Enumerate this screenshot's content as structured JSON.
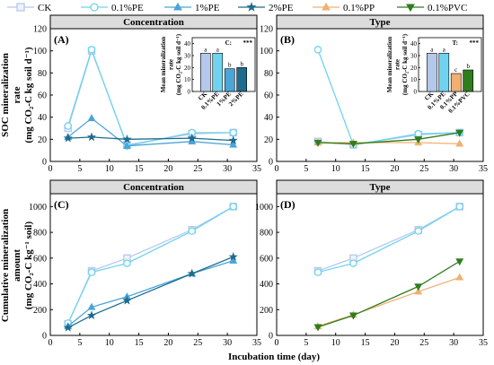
{
  "legend": {
    "position": "top",
    "entries": [
      {
        "name": "CK",
        "color": "#b4c8ec",
        "marker": "square"
      },
      {
        "name": "0.1%PE",
        "color": "#6fd3ef",
        "marker": "circle"
      },
      {
        "name": "1%PE",
        "color": "#4aa5d8",
        "marker": "triangle-up"
      },
      {
        "name": "2%PE",
        "color": "#1e6b8e",
        "marker": "star"
      },
      {
        "name": "0.1%PP",
        "color": "#f0b070",
        "marker": "triangle-up"
      },
      {
        "name": "0.1%PVC",
        "color": "#2e7d1e",
        "marker": "triangle-down"
      }
    ]
  },
  "shared": {
    "xlabel": "Incubation time (day)",
    "xlim": [
      0,
      35
    ],
    "xticks": [
      "0",
      "5",
      "10",
      "15",
      "20",
      "25",
      "30",
      "35"
    ],
    "ylabel_top": [
      "SOC mineralization",
      "rate",
      "(mg CO₂-C kg soil d⁻¹)"
    ],
    "ylabel_bottom": [
      "Cumulative mineralization",
      "amount",
      "(mg CO₂-C kg⁻¹ soil)"
    ]
  },
  "chart_data": [
    {
      "id": "A",
      "type": "line",
      "label": "(A)",
      "header": "Concentration",
      "ylim": [
        0,
        120
      ],
      "yticks": [
        "0",
        "20",
        "40",
        "60",
        "80",
        "100",
        "120"
      ],
      "x": [
        3,
        7,
        13,
        24,
        31
      ],
      "series": [
        {
          "name": "CK",
          "values": [
            30,
            100,
            15,
            25,
            26
          ]
        },
        {
          "name": "0.1%PE",
          "values": [
            32,
            101,
            14,
            26,
            26
          ]
        },
        {
          "name": "1%PE",
          "values": [
            22,
            39,
            14,
            18,
            15
          ]
        },
        {
          "name": "2%PE",
          "values": [
            21,
            22,
            20,
            21,
            19
          ]
        }
      ],
      "inset": {
        "type": "bar",
        "ylabel": [
          "Mean mineralization",
          "rate",
          "(mg CO₂-C kg soil d⁻¹)"
        ],
        "ylim": [
          0,
          45
        ],
        "yticks": [
          "0",
          "10",
          "20",
          "30",
          "40"
        ],
        "categories": [
          "CK",
          "0.1%PE",
          "1%PE",
          "2%PE"
        ],
        "values": [
          32,
          32,
          19,
          20
        ],
        "letters": [
          "a",
          "a",
          "b",
          "b"
        ],
        "stat_label": "C:",
        "stat_sig": "***"
      }
    },
    {
      "id": "B",
      "type": "line",
      "label": "(B)",
      "header": "Type",
      "ylim": [
        0,
        120
      ],
      "yticks": [
        "0",
        "20",
        "40",
        "60",
        "80",
        "100",
        "120"
      ],
      "x": [
        7,
        13,
        24,
        31
      ],
      "series": [
        {
          "name": "CK",
          "values": [
            18,
            15,
            24,
            26
          ]
        },
        {
          "name": "0.1%PE",
          "values": [
            101,
            15,
            25,
            26
          ]
        },
        {
          "name": "0.1%PP",
          "values": [
            17,
            17,
            17,
            16
          ]
        },
        {
          "name": "0.1%PVC",
          "values": [
            17,
            16,
            20,
            26
          ]
        }
      ],
      "inset": {
        "type": "bar",
        "ylabel": [
          "Mean mineralization",
          "rate",
          "(mg CO₂-C kg soil d⁻¹)"
        ],
        "ylim": [
          0,
          45
        ],
        "yticks": [
          "0",
          "10",
          "20",
          "30",
          "40"
        ],
        "categories": [
          "CK",
          "0.1%PE",
          "0.1%PP",
          "0.1%PVC"
        ],
        "values": [
          32,
          32,
          15,
          18
        ],
        "letters": [
          "a",
          "a",
          "c",
          "b"
        ],
        "stat_label": "T:",
        "stat_sig": "***"
      }
    },
    {
      "id": "C",
      "type": "line",
      "label": "(C)",
      "header": "Concentration",
      "ylim": [
        0,
        1100
      ],
      "yticks": [
        "0",
        "200",
        "400",
        "600",
        "800",
        "1000"
      ],
      "x": [
        3,
        7,
        13,
        24,
        31
      ],
      "series": [
        {
          "name": "CK",
          "values": [
            90,
            500,
            600,
            820,
            1000
          ]
        },
        {
          "name": "0.1%PE",
          "values": [
            95,
            490,
            560,
            810,
            1000
          ]
        },
        {
          "name": "1%PE",
          "values": [
            70,
            220,
            300,
            480,
            580
          ]
        },
        {
          "name": "2%PE",
          "values": [
            60,
            155,
            270,
            480,
            610
          ]
        }
      ]
    },
    {
      "id": "D",
      "type": "line",
      "label": "(D)",
      "header": "Type",
      "ylim": [
        0,
        1100
      ],
      "yticks": [
        "0",
        "200",
        "400",
        "600",
        "800",
        "1000"
      ],
      "x": [
        7,
        13,
        24,
        31
      ],
      "series": [
        {
          "name": "CK",
          "values": [
            500,
            600,
            820,
            1000
          ]
        },
        {
          "name": "0.1%PE",
          "values": [
            490,
            560,
            810,
            1000
          ]
        },
        {
          "name": "0.1%PP",
          "values": [
            70,
            160,
            340,
            450
          ]
        },
        {
          "name": "0.1%PVC",
          "values": [
            65,
            155,
            380,
            575
          ]
        }
      ]
    }
  ]
}
